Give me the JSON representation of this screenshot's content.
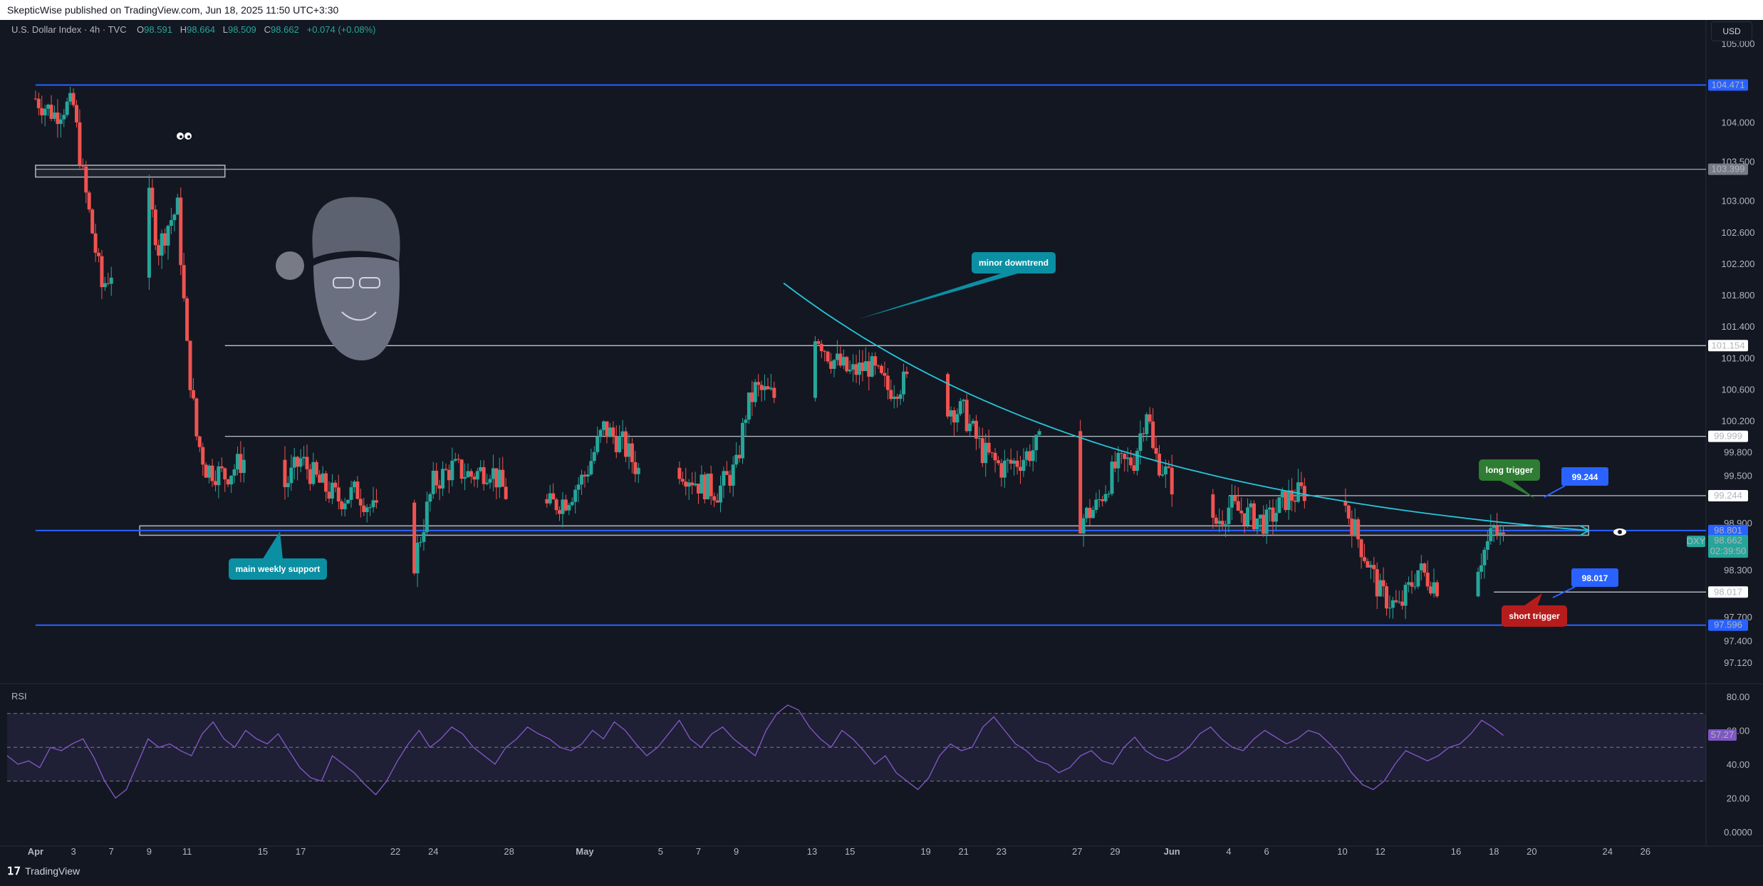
{
  "publish_bar": {
    "text": "SkepticWise published on TradingView.com, Jun 18, 2025 11:50 UTC+3:30"
  },
  "header": {
    "symbol": "U.S. Dollar Index · 4h · TVC",
    "o_label": "O",
    "o": "98.591",
    "h_label": "H",
    "h": "98.664",
    "l_label": "L",
    "l": "98.509",
    "c_label": "C",
    "c": "98.662",
    "change": "+0.074 (+0.08%)"
  },
  "currency_button": "USD",
  "rsi_title": "RSI",
  "footer_brand": "TradingView",
  "colors": {
    "background": "#131722",
    "up": "#26a69a",
    "down": "#ef5350",
    "blue_line": "#2962ff",
    "trend": "#26c6da",
    "rsi": "#7e57c2"
  },
  "chart_data": [
    {
      "type": "candlestick",
      "symbol": "DXY",
      "timeframe": "4h",
      "ylim": [
        96.85,
        105.3
      ],
      "y_ticks": [
        "105.000",
        "104.000",
        "103.500",
        "103.000",
        "102.600",
        "102.200",
        "101.800",
        "101.400",
        "101.000",
        "100.600",
        "100.200",
        "99.800",
        "99.500",
        "98.900",
        "98.300",
        "97.700",
        "97.400",
        "97.120"
      ],
      "y_tick_values": [
        105.0,
        104.0,
        103.5,
        103.0,
        102.6,
        102.2,
        101.8,
        101.4,
        101.0,
        100.6,
        100.2,
        99.8,
        99.5,
        98.9,
        98.3,
        97.7,
        97.4,
        97.12
      ],
      "x_ticks": [
        "Apr",
        "3",
        "7",
        "9",
        "11",
        "15",
        "17",
        "22",
        "24",
        "28",
        "May",
        "5",
        "7",
        "9",
        "13",
        "15",
        "19",
        "21",
        "23",
        "27",
        "29",
        "Jun",
        "4",
        "6",
        "10",
        "12",
        "16",
        "18",
        "20",
        "24",
        "26"
      ],
      "x_tick_days": [
        0,
        2,
        4,
        6,
        8,
        12,
        14,
        19,
        21,
        25,
        29,
        33,
        35,
        37,
        41,
        43,
        47,
        49,
        51,
        55,
        57,
        60,
        63,
        65,
        69,
        71,
        75,
        77,
        79,
        83,
        85
      ],
      "x_tick_bold": [
        "Apr",
        "May",
        "Jun"
      ],
      "close_path_points": [
        [
          0,
          104.3
        ],
        [
          1,
          104.1
        ],
        [
          1.5,
          104.2
        ],
        [
          2,
          104.2
        ],
        [
          2.5,
          103.3
        ],
        [
          3,
          102.6
        ],
        [
          3.5,
          101.9
        ],
        [
          4,
          102.1
        ],
        [
          4.5,
          102.7
        ],
        [
          5,
          103.0
        ],
        [
          5.5,
          103.5
        ],
        [
          6,
          103.0
        ],
        [
          6.5,
          102.4
        ],
        [
          7,
          102.7
        ],
        [
          7.5,
          102.9
        ],
        [
          8,
          101.1
        ],
        [
          8.5,
          100.0
        ],
        [
          9,
          99.6
        ],
        [
          10,
          99.5
        ],
        [
          11,
          99.7
        ],
        [
          12,
          99.5
        ],
        [
          13,
          99.3
        ],
        [
          14,
          99.7
        ],
        [
          15,
          99.4
        ],
        [
          16,
          99.2
        ],
        [
          17,
          99.3
        ],
        [
          18,
          99.0
        ],
        [
          18.5,
          98.0
        ],
        [
          19,
          98.1
        ],
        [
          20,
          98.4
        ],
        [
          20.5,
          98.9
        ],
        [
          21,
          99.4
        ],
        [
          22,
          99.6
        ],
        [
          23,
          99.5
        ],
        [
          24,
          99.6
        ],
        [
          25,
          99.2
        ],
        [
          26,
          98.9
        ],
        [
          27,
          99.1
        ],
        [
          28,
          99.2
        ],
        [
          29,
          99.5
        ],
        [
          30,
          100.1
        ],
        [
          31,
          99.9
        ],
        [
          32,
          99.5
        ],
        [
          33,
          99.7
        ],
        [
          34,
          99.6
        ],
        [
          35,
          99.4
        ],
        [
          36,
          99.3
        ],
        [
          37,
          99.6
        ],
        [
          37.5,
          100.3
        ],
        [
          38,
          100.6
        ],
        [
          39,
          100.5
        ],
        [
          39.5,
          101.7
        ],
        [
          40,
          101.6
        ],
        [
          41,
          101.4
        ],
        [
          42,
          101.0
        ],
        [
          43,
          100.8
        ],
        [
          44,
          100.9
        ],
        [
          45,
          100.6
        ],
        [
          46,
          100.7
        ],
        [
          47,
          101.0
        ],
        [
          48,
          100.4
        ],
        [
          49,
          100.3
        ],
        [
          50,
          99.8
        ],
        [
          51,
          99.6
        ],
        [
          52,
          99.7
        ],
        [
          53,
          99.9
        ],
        [
          54,
          99.3
        ],
        [
          55,
          98.9
        ],
        [
          56,
          99.1
        ],
        [
          57,
          99.6
        ],
        [
          58,
          99.7
        ],
        [
          58.7,
          100.4
        ],
        [
          59,
          99.8
        ],
        [
          60,
          99.4
        ],
        [
          61,
          99.3
        ],
        [
          62,
          98.8
        ],
        [
          63,
          99.1
        ],
        [
          64,
          99.0
        ],
        [
          65,
          98.9
        ],
        [
          66,
          99.2
        ],
        [
          67,
          99.3
        ],
        [
          68,
          99.1
        ],
        [
          69,
          99.2
        ],
        [
          70,
          98.6
        ],
        [
          71,
          98.0
        ],
        [
          72,
          97.8
        ],
        [
          73,
          98.3
        ],
        [
          74,
          98.1
        ],
        [
          75,
          98.2
        ],
        [
          76,
          98.3
        ],
        [
          77,
          98.8
        ],
        [
          77.5,
          98.66
        ]
      ],
      "last_price": "98.662",
      "countdown": "02:39:50",
      "price_badges": [
        {
          "value": "104.471",
          "kind": "blue"
        },
        {
          "value": "103.399",
          "kind": "gray"
        },
        {
          "value": "101.154",
          "kind": "white"
        },
        {
          "value": "99.999",
          "kind": "white"
        },
        {
          "value": "99.244",
          "kind": "white"
        },
        {
          "value": "98.801",
          "kind": "blue"
        },
        {
          "value": "98.017",
          "kind": "white"
        },
        {
          "value": "97.596",
          "kind": "blue"
        }
      ],
      "horizontal_lines": [
        {
          "price": 104.471,
          "color": "#2962ff",
          "from_day": 0
        },
        {
          "price": 103.399,
          "color": "#b2b5be",
          "from_day": 0
        },
        {
          "price": 101.154,
          "color": "#d1d4dc",
          "from_day": 10
        },
        {
          "price": 99.999,
          "color": "#d1d4dc",
          "from_day": 10
        },
        {
          "price": 99.244,
          "color": "#d1d4dc",
          "from_day": 63
        },
        {
          "price": 98.801,
          "color": "#2962ff",
          "from_day": 0
        },
        {
          "price": 98.017,
          "color": "#d1d4dc",
          "from_day": 77
        },
        {
          "price": 97.596,
          "color": "#2962ff",
          "from_day": 0
        }
      ],
      "zones": [
        {
          "label": "top resistance box",
          "from_day": 0,
          "to_day": 10,
          "low": 103.3,
          "high": 103.45
        },
        {
          "label": "main weekly support box",
          "from_day": 5.5,
          "to_day": 82,
          "low": 98.74,
          "high": 98.86
        }
      ],
      "trend_curve": {
        "from": [
          39.5,
          101.95
        ],
        "to": [
          82,
          98.8
        ]
      },
      "annotations": [
        "minor downtrend",
        "main weekly support",
        "long trigger",
        "short trigger"
      ],
      "target_labels": [
        "99.244",
        "98.017"
      ]
    },
    {
      "type": "line",
      "name": "RSI",
      "ylim": [
        0,
        80
      ],
      "y_ticks": [
        "80.00",
        "60.00",
        "40.00",
        "20.00",
        "0.0000"
      ],
      "y_tick_values": [
        80,
        60,
        40,
        20,
        0
      ],
      "bands": {
        "upper": 70,
        "middle": 50,
        "lower": 30
      },
      "last_value": "57.27",
      "values": [
        45,
        40,
        42,
        38,
        50,
        48,
        52,
        55,
        44,
        30,
        20,
        25,
        40,
        55,
        50,
        52,
        48,
        45,
        58,
        65,
        55,
        50,
        60,
        55,
        52,
        58,
        48,
        38,
        32,
        30,
        45,
        40,
        35,
        28,
        22,
        30,
        42,
        52,
        60,
        50,
        55,
        62,
        58,
        50,
        45,
        40,
        50,
        55,
        62,
        58,
        55,
        50,
        48,
        52,
        60,
        55,
        65,
        60,
        52,
        45,
        50,
        58,
        66,
        55,
        50,
        58,
        62,
        55,
        50,
        45,
        60,
        70,
        75,
        72,
        62,
        55,
        50,
        60,
        55,
        48,
        40,
        45,
        35,
        30,
        25,
        32,
        45,
        52,
        48,
        50,
        62,
        68,
        60,
        52,
        48,
        42,
        40,
        35,
        38,
        45,
        48,
        42,
        40,
        50,
        56,
        48,
        44,
        42,
        45,
        50,
        58,
        62,
        55,
        50,
        48,
        55,
        60,
        56,
        52,
        55,
        60,
        58,
        52,
        45,
        35,
        28,
        25,
        30,
        40,
        48,
        45,
        42,
        45,
        50,
        52,
        58,
        66,
        62,
        57
      ]
    }
  ]
}
